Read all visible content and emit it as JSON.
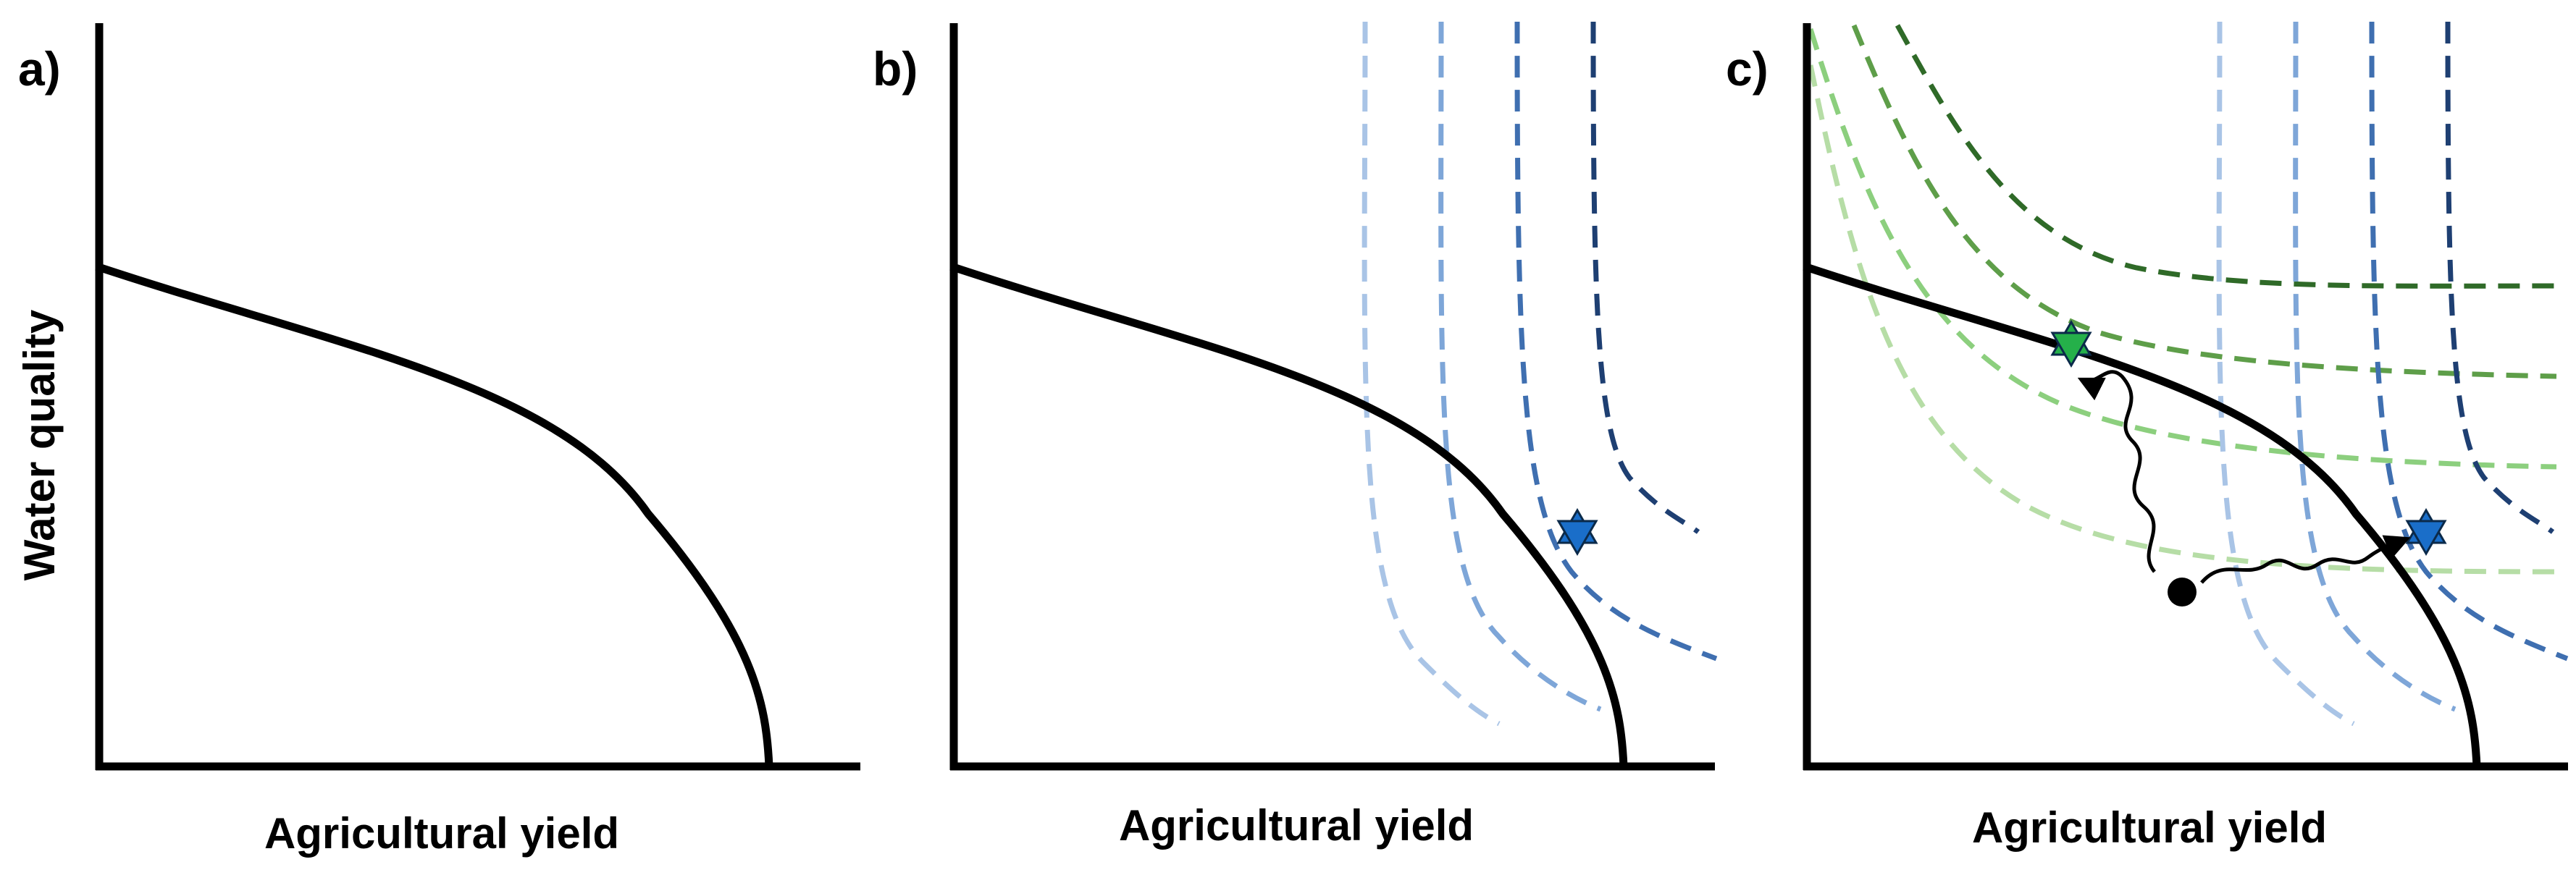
{
  "colors": {
    "axis": "#000000",
    "frontier": "#000000",
    "blue_isolines": [
      "#a9c4e6",
      "#7ea6d8",
      "#3f6fb0",
      "#1e3f72"
    ],
    "green_isolines": [
      "#b6dda6",
      "#8ccf7e",
      "#5e9e49",
      "#2f6a28"
    ],
    "blue_star": "#1a6ec9",
    "green_star": "#25b04a"
  },
  "panels": [
    {
      "letter": "a)",
      "ylabel": "Water  quality",
      "xlabel": "Agricultural yield",
      "isolines": "none",
      "optimum_markers": []
    },
    {
      "letter": "b)",
      "ylabel": "",
      "xlabel": "Agricultural yield",
      "isolines": "blue",
      "optimum_markers": [
        "blue-star-icon"
      ]
    },
    {
      "letter": "c)",
      "ylabel": "",
      "xlabel": "Agricultural yield",
      "isolines": "blue-and-green",
      "optimum_markers": [
        "green-star-icon",
        "blue-star-icon"
      ],
      "start_marker": "black-dot-icon",
      "paths": [
        "wavy-arrow-to-green-star",
        "wavy-arrow-to-blue-star"
      ]
    }
  ]
}
